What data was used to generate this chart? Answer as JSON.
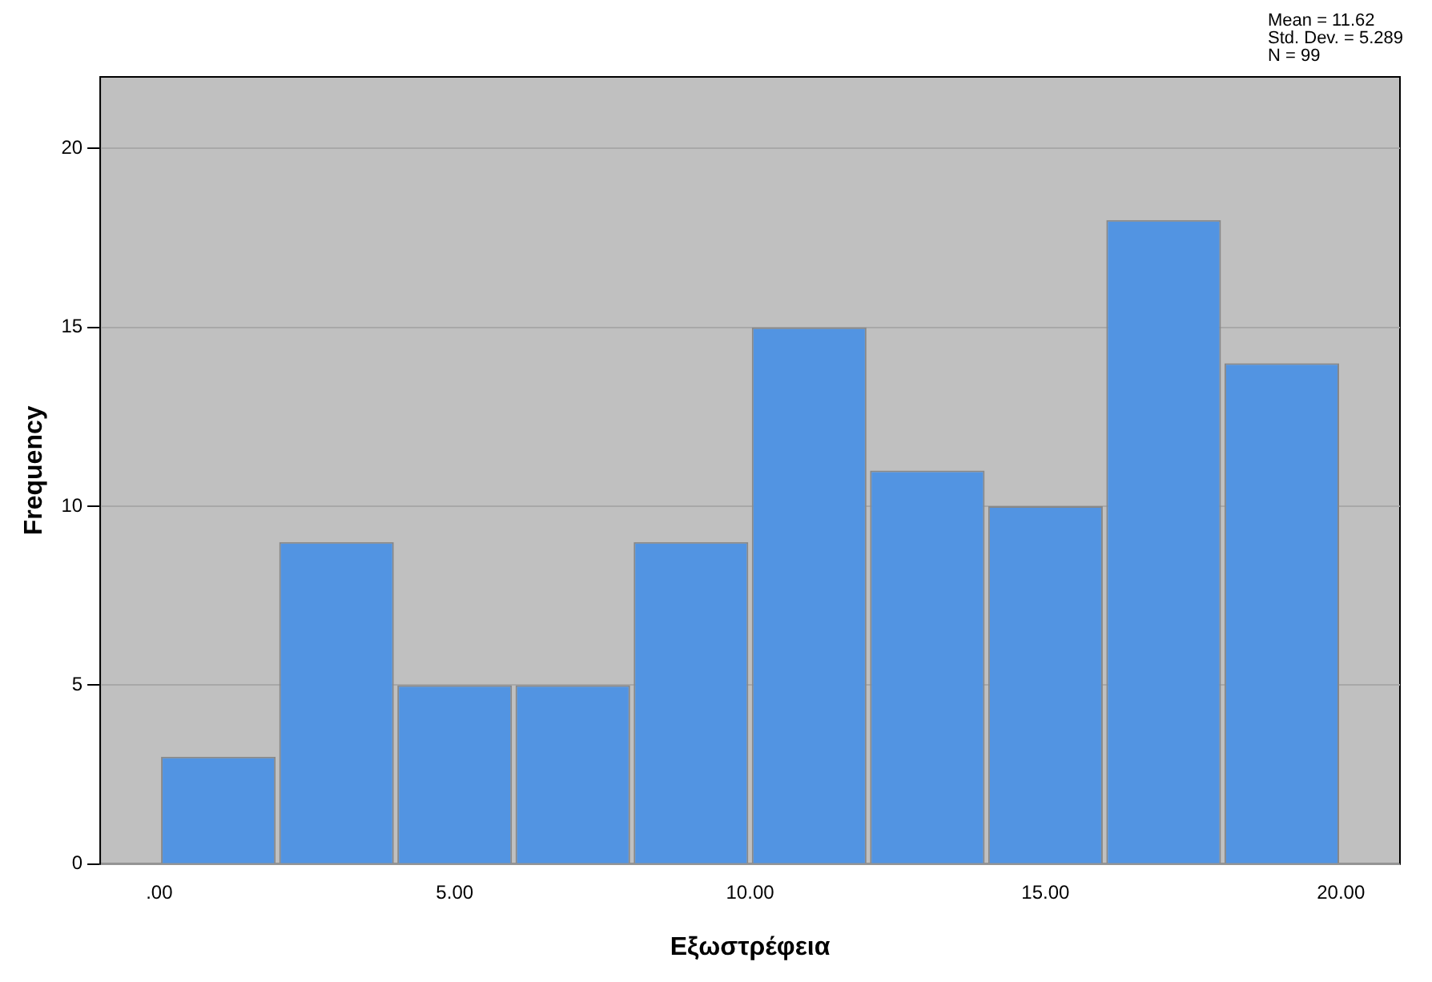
{
  "chart_data": {
    "type": "histogram",
    "xlabel": "Εξωστρέφεια",
    "ylabel": "Frequency",
    "bins": [
      0,
      2,
      4,
      6,
      8,
      10,
      12,
      14,
      16,
      18,
      20
    ],
    "values": [
      3,
      9,
      5,
      5,
      9,
      15,
      11,
      10,
      18,
      14
    ],
    "color": "#5294e2",
    "xlim": [
      -1,
      21
    ],
    "xticks": [
      {
        "value": 0,
        "label": ".00"
      },
      {
        "value": 5,
        "label": "5.00"
      },
      {
        "value": 10,
        "label": "10.00"
      },
      {
        "value": 15,
        "label": "15.00"
      },
      {
        "value": 20,
        "label": "20.00"
      }
    ],
    "ylim": [
      0,
      22
    ],
    "yticks": [
      0,
      5,
      10,
      15,
      20
    ],
    "grid": "y",
    "legend": false,
    "annotations": [
      "Mean = 11.62",
      "Std. Dev. = 5.289",
      "N = 99"
    ]
  }
}
